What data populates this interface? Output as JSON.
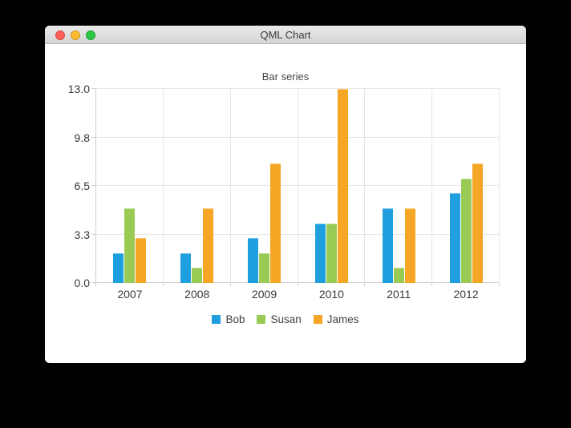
{
  "window": {
    "title": "QML Chart",
    "close_color": "#ff5f57",
    "minimize_color": "#febc2e",
    "zoom_color": "#28c840"
  },
  "chart_data": {
    "type": "bar",
    "title": "Bar series",
    "categories": [
      "2007",
      "2008",
      "2009",
      "2010",
      "2011",
      "2012"
    ],
    "series": [
      {
        "name": "Bob",
        "color": "#209fdf",
        "values": [
          2,
          2,
          3,
          4,
          5,
          6
        ]
      },
      {
        "name": "Susan",
        "color": "#99ca53",
        "values": [
          5,
          1,
          2,
          4,
          1,
          7
        ]
      },
      {
        "name": "James",
        "color": "#f6a625",
        "values": [
          3,
          5,
          8,
          13,
          5,
          8
        ]
      }
    ],
    "ylim": [
      0,
      13
    ],
    "y_tick_labels": [
      "0.0",
      "3.3",
      "6.5",
      "9.8",
      "13.0"
    ],
    "grid": true,
    "legend_position": "bottom",
    "grid_color": "#e6e6e6",
    "axis_color": "#cfcfcf"
  }
}
